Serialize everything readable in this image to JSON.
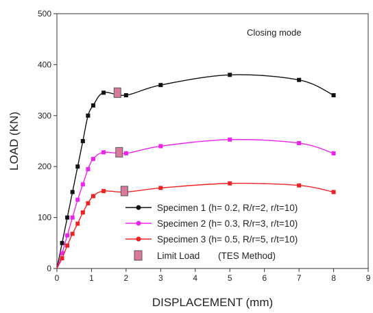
{
  "chart_data": {
    "type": "line",
    "title": "",
    "annotation": "Closing mode",
    "xlabel": "DISPLACEMENT (mm)",
    "ylabel": "LOAD (KN)",
    "xlim": [
      0,
      9
    ],
    "ylim": [
      0,
      500
    ],
    "x_ticks": [
      "0",
      "1",
      "2",
      "3",
      "4",
      "5",
      "6",
      "7",
      "8",
      "9"
    ],
    "y_ticks": [
      "0",
      "100",
      "200",
      "300",
      "400",
      "500"
    ],
    "grid": false,
    "legend_position": "bottom-right",
    "series": [
      {
        "name": "Specimen 1 (h= 0.2, R/r=2, r/t=10)",
        "color": "#111111",
        "x": [
          0,
          0.15,
          0.3,
          0.45,
          0.6,
          0.75,
          0.9,
          1.05,
          1.35,
          2.0,
          3.0,
          5.0,
          7.0,
          8.0
        ],
        "y": [
          0,
          50,
          100,
          150,
          200,
          250,
          300,
          320,
          345,
          340,
          360,
          380,
          370,
          340
        ]
      },
      {
        "name": "Specimen 2 (h= 0.3, R/r=3, r/t=10)",
        "color": "#ee22ee",
        "x": [
          0,
          0.15,
          0.3,
          0.45,
          0.6,
          0.75,
          0.9,
          1.05,
          1.35,
          2.0,
          3.0,
          5.0,
          7.0,
          8.0
        ],
        "y": [
          0,
          30,
          65,
          100,
          135,
          165,
          195,
          215,
          228,
          226,
          240,
          253,
          246,
          226
        ]
      },
      {
        "name": "Specimen 3 (h= 0.5, R/r=5, r/t=10)",
        "color": "#ee2222",
        "x": [
          0,
          0.15,
          0.3,
          0.45,
          0.6,
          0.75,
          0.9,
          1.05,
          1.35,
          2.0,
          3.0,
          5.0,
          7.0,
          8.0
        ],
        "y": [
          0,
          20,
          45,
          68,
          88,
          110,
          128,
          142,
          152,
          150,
          158,
          167,
          163,
          150
        ]
      }
    ],
    "limit_load": {
      "name": "Limit Load",
      "method": "(TES Method)",
      "color": "#d97a9a",
      "points": [
        {
          "x": 1.75,
          "y": 345
        },
        {
          "x": 1.8,
          "y": 228
        },
        {
          "x": 1.95,
          "y": 152
        }
      ]
    }
  }
}
